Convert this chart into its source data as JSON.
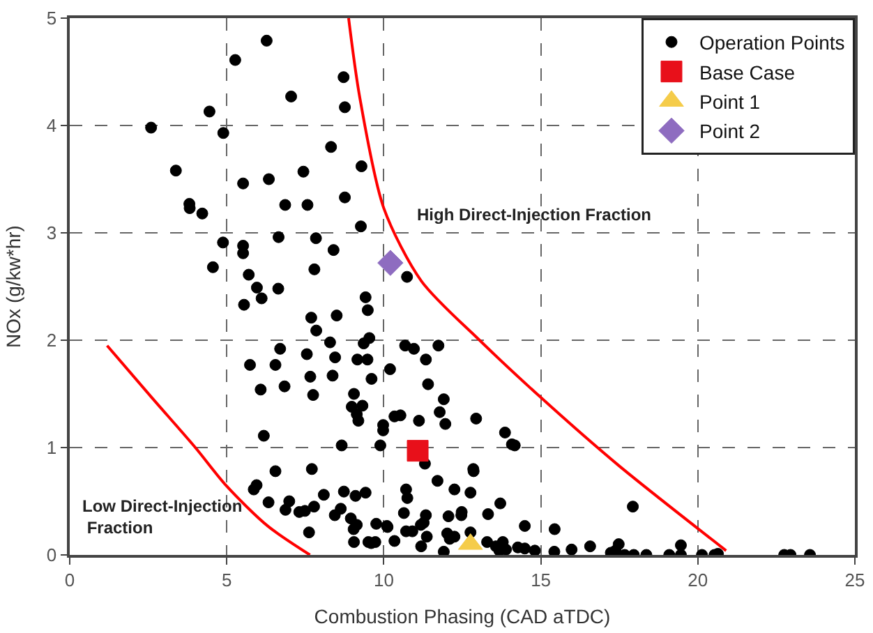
{
  "chart_data": {
    "type": "scatter",
    "xlabel": "Combustion Phasing (CAD aTDC)",
    "ylabel": "NOx (g/kw*hr)",
    "xlim": [
      0,
      25
    ],
    "xticks": [
      0,
      5,
      10,
      15,
      20,
      25
    ],
    "ylim": [
      0,
      5
    ],
    "yticks": [
      0,
      1,
      2,
      3,
      4,
      5
    ],
    "grid": true,
    "legend": "top right",
    "annotations": [
      "High Direct-Injection Fraction",
      "Low Direct-Injection\n Fraction"
    ],
    "series": [
      {
        "name": "Operation Points",
        "color": "#000000",
        "marker": "circle",
        "x": [
          6.27,
          5.27,
          8.72,
          7.05,
          4.45,
          8.76,
          2.59,
          4.89,
          8.32,
          9.29,
          3.38,
          7.44,
          5.52,
          6.34,
          8.76,
          3.81,
          3.82,
          4.22,
          6.86,
          7.57,
          9.27,
          4.88,
          6.65,
          7.84,
          5.52,
          5.52,
          8.4,
          4.56,
          7.79,
          10.74,
          5.7,
          5.96,
          6.64,
          6.11,
          5.55,
          9.42,
          9.49,
          7.69,
          8.5,
          7.85,
          8.29,
          9.54,
          9.36,
          10.68,
          6.7,
          7.55,
          8.45,
          9.16,
          9.48,
          5.74,
          6.55,
          10.2,
          8.37,
          7.66,
          9.61,
          6.08,
          6.84,
          7.75,
          9.05,
          9.32,
          8.98,
          9.14,
          9.19,
          10.53,
          10.34,
          9.98,
          9.98,
          6.18,
          8.66,
          9.89,
          7.71,
          6.55,
          5.95,
          5.86,
          8.09,
          8.73,
          9.1,
          9.42,
          10.71,
          6.33,
          6.99,
          6.87,
          7.31,
          7.49,
          7.78,
          8.63,
          8.44,
          8.95,
          9.14,
          9.04,
          9.76,
          10.12,
          10.71,
          7.62,
          9.05,
          9.51,
          9.73,
          10.34,
          9.6,
          10.96,
          11.74,
          11.34,
          11.41,
          11.91,
          11.78,
          11.96,
          11.12,
          12.94,
          13.86,
          14.08,
          14.17,
          11.31,
          12.85,
          12.86,
          11.71,
          12.25,
          12.76,
          10.75,
          13.71,
          10.64,
          11.34,
          11.27,
          12.06,
          12.48,
          12.47,
          13.32,
          14.49,
          10.1,
          10.91,
          11.18,
          11.37,
          12.02,
          12.1,
          12.25,
          12.76,
          11.91,
          11.19,
          13.29,
          13.57,
          13.79,
          13.89,
          13.68,
          14.27,
          14.49,
          14.81,
          15.44,
          15.43,
          15.98,
          16.57,
          17.23,
          17.38,
          17.48,
          17.67,
          17.93,
          17.96,
          18.36,
          19.09,
          19.46,
          19.46,
          20.13,
          20.53,
          20.64,
          22.75,
          22.95,
          23.57
        ],
        "values": [
          4.79,
          4.61,
          4.45,
          4.27,
          4.13,
          4.17,
          3.98,
          3.93,
          3.8,
          3.62,
          3.58,
          3.57,
          3.46,
          3.5,
          3.33,
          3.27,
          3.23,
          3.18,
          3.26,
          3.26,
          3.06,
          2.91,
          2.96,
          2.95,
          2.88,
          2.81,
          2.84,
          2.68,
          2.66,
          2.59,
          2.61,
          2.49,
          2.48,
          2.39,
          2.33,
          2.4,
          2.28,
          2.21,
          2.23,
          2.09,
          1.98,
          2.02,
          1.97,
          1.95,
          1.92,
          1.87,
          1.84,
          1.82,
          1.82,
          1.77,
          1.77,
          1.73,
          1.67,
          1.66,
          1.64,
          1.54,
          1.57,
          1.49,
          1.5,
          1.39,
          1.38,
          1.31,
          1.25,
          1.3,
          1.29,
          1.21,
          1.16,
          1.11,
          1.02,
          1.02,
          0.8,
          0.78,
          0.65,
          0.61,
          0.56,
          0.59,
          0.55,
          0.58,
          0.61,
          0.49,
          0.5,
          0.42,
          0.4,
          0.41,
          0.45,
          0.43,
          0.37,
          0.34,
          0.28,
          0.24,
          0.29,
          0.26,
          0.22,
          0.21,
          0.12,
          0.12,
          0.12,
          0.13,
          0.11,
          1.92,
          1.95,
          1.82,
          1.59,
          1.45,
          1.33,
          1.22,
          1.25,
          1.27,
          1.14,
          1.03,
          1.02,
          0.85,
          0.8,
          0.78,
          0.69,
          0.61,
          0.58,
          0.53,
          0.48,
          0.39,
          0.37,
          0.3,
          0.36,
          0.4,
          0.37,
          0.38,
          0.27,
          0.27,
          0.22,
          0.28,
          0.17,
          0.2,
          0.15,
          0.17,
          0.21,
          0.03,
          0.08,
          0.12,
          0.08,
          0.12,
          0.05,
          0.04,
          0.07,
          0.06,
          0.04,
          0.24,
          0.03,
          0.05,
          0.08,
          0.02,
          0.04,
          0.1,
          0.0,
          0.45,
          0.0,
          0.0,
          0.0,
          0.09,
          0.0,
          0.0,
          0.0,
          0.01,
          0.0,
          0.0,
          0.0
        ]
      },
      {
        "name": "Base Case",
        "color": "#e8101a",
        "marker": "square",
        "x": [
          11.08
        ],
        "values": [
          0.97
        ]
      },
      {
        "name": "Point 1",
        "color": "#f5cc4a",
        "marker": "triangle",
        "x": [
          12.76
        ],
        "values": [
          0.1
        ]
      },
      {
        "name": "Point 2",
        "color": "#8e6cc0",
        "marker": "diamond",
        "x": [
          10.21
        ],
        "values": [
          2.72
        ]
      },
      {
        "type": "line",
        "color": "#ff0000",
        "marker": "none",
        "line_style": "solid",
        "x": [
          8.88,
          9.23,
          10.0,
          11.2,
          13.05,
          14.95,
          17.45,
          20.9
        ],
        "values": [
          5.0,
          4.27,
          3.23,
          2.55,
          2.0,
          1.48,
          0.84,
          0.04
        ]
      },
      {
        "type": "line",
        "color": "#ff0000",
        "marker": "none",
        "line_style": "solid",
        "x": [
          1.19,
          2.6,
          4.0,
          5.0,
          6.3,
          7.65
        ],
        "values": [
          1.95,
          1.47,
          1.0,
          0.64,
          0.27,
          0.0
        ]
      }
    ]
  }
}
